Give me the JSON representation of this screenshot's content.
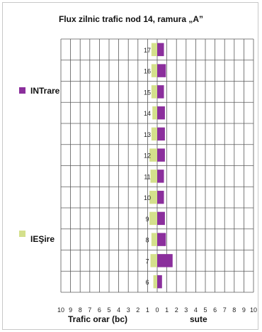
{
  "chart_data": {
    "type": "bar",
    "orientation": "horizontal-butterfly",
    "title": "Flux zilnic trafic nod 14, ramura „A”",
    "xlabel": "Trafic orar (bc)",
    "unit_label": "sute",
    "categories": [
      "6",
      "7",
      "8",
      "9",
      "10",
      "11",
      "12",
      "13",
      "14",
      "15",
      "16",
      "17"
    ],
    "x_ticks_left": [
      "10",
      "9",
      "8",
      "7",
      "6",
      "5",
      "4",
      "3",
      "2",
      "1"
    ],
    "x_ticks_center": "0",
    "x_ticks_right": [
      "1",
      "2",
      "3",
      "4",
      "5",
      "6",
      "7",
      "8",
      "9",
      "10"
    ],
    "xlim": [
      -10,
      10
    ],
    "series": [
      {
        "name": "INTrare",
        "color": "#8b2f9c",
        "values": [
          0.5,
          1.6,
          0.9,
          0.8,
          0.7,
          0.7,
          0.8,
          0.8,
          0.8,
          0.7,
          0.9,
          0.7
        ]
      },
      {
        "name": "IEŞire",
        "color": "#d4e08c",
        "values": [
          0.4,
          0.7,
          0.6,
          0.8,
          0.8,
          0.7,
          0.8,
          0.6,
          0.5,
          0.6,
          0.6,
          0.6
        ]
      }
    ],
    "grid": true,
    "legend_placement": "left"
  }
}
